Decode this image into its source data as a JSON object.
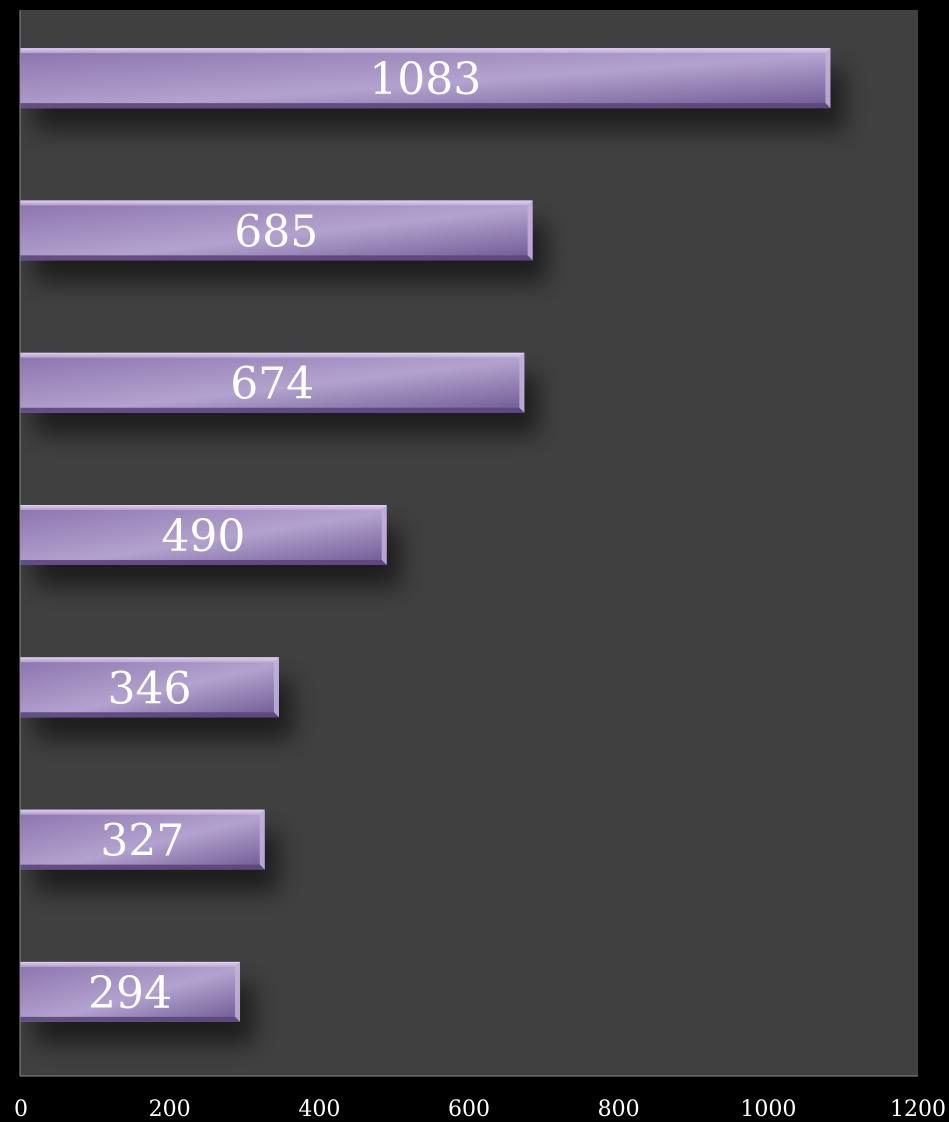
{
  "chart_data": {
    "type": "bar",
    "orientation": "horizontal",
    "values": [
      1083,
      685,
      674,
      490,
      346,
      327,
      294
    ],
    "xlim": [
      0,
      1200
    ],
    "x_ticks": [
      0,
      200,
      400,
      600,
      800,
      1000,
      1200
    ],
    "data_labels": [
      "1083",
      "685",
      "674",
      "490",
      "346",
      "327",
      "294"
    ],
    "grid": false,
    "legend": "none",
    "title": "",
    "xlabel": "",
    "ylabel": ""
  },
  "colors": {
    "page_background": "#000000",
    "plot_background": "#404040",
    "bar_fill": "#9a86b8",
    "bar_highlight": "#d6c9ea",
    "bar_dark": "#6b5690",
    "label_text": "#ffffff",
    "axis_line": "#8c8c8c"
  }
}
